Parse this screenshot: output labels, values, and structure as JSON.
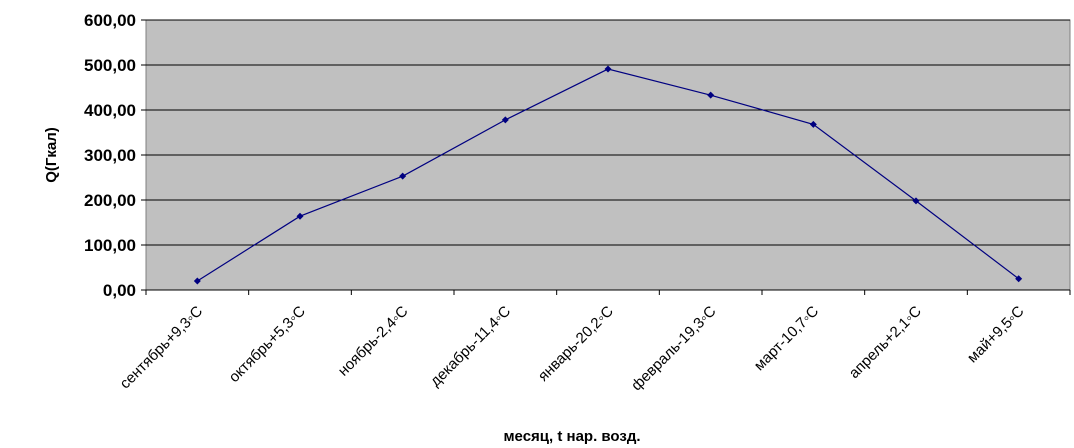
{
  "chart_data": {
    "type": "line",
    "categories": [
      "сентябрь+9,3◦С",
      "октябрь+5,3◦С",
      "ноябрь-2,4◦С",
      "декабрь-11,4◦С",
      "январь-20,2◦С",
      "февраль-19,3◦С",
      "март-10,7◦С",
      "апрель+2,1◦С",
      "май+9,5◦С"
    ],
    "y_tick_labels": [
      "0,00",
      "100,00",
      "200,00",
      "300,00",
      "400,00",
      "500,00",
      "600,00"
    ],
    "series": [
      {
        "values": [
          20,
          164,
          253,
          378,
          491,
          433,
          368,
          198,
          25
        ]
      }
    ],
    "xlabel": "месяц, t нар. возд.",
    "ylabel": "Q(Гкал)",
    "ylim": [
      0,
      600
    ],
    "grid": true,
    "legend": "none",
    "colors": {
      "plot_background": "#c0c0c0",
      "line": "#000080",
      "grid": "#000000"
    }
  }
}
